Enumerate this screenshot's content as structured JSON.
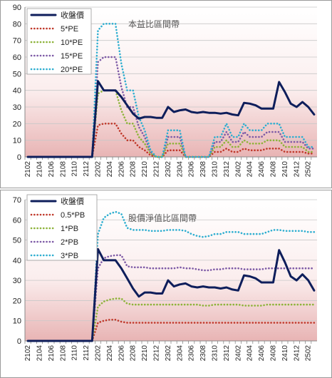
{
  "chart_data": [
    {
      "type": "line",
      "title": "本益比區間帶",
      "ylim": [
        0,
        90
      ],
      "yticks": [
        0,
        10,
        20,
        30,
        40,
        50,
        60,
        70,
        80,
        90
      ],
      "xticks": [
        "2102",
        "2104",
        "2106",
        "2108",
        "2110",
        "2112",
        "2202",
        "2204",
        "2206",
        "2208",
        "2210",
        "2212",
        "2302",
        "2304",
        "2306",
        "2308",
        "2310",
        "2312",
        "2402",
        "2404",
        "2406",
        "2408",
        "2410",
        "2412",
        "2502"
      ],
      "grid": true,
      "legend_position": "top-left",
      "categories": [
        "2102",
        "2103",
        "2104",
        "2105",
        "2106",
        "2107",
        "2108",
        "2109",
        "2110",
        "2111",
        "2112",
        "2201",
        "2202",
        "2203",
        "2204",
        "2205",
        "2206",
        "2207",
        "2208",
        "2209",
        "2210",
        "2211",
        "2212",
        "2301",
        "2302",
        "2303",
        "2304",
        "2305",
        "2306",
        "2307",
        "2308",
        "2309",
        "2310",
        "2311",
        "2312",
        "2401",
        "2402",
        "2403",
        "2404",
        "2405",
        "2406",
        "2407",
        "2408",
        "2409",
        "2410",
        "2411",
        "2412",
        "2501",
        "2502",
        "2503"
      ],
      "series": [
        {
          "name": "收盤價",
          "color": "#0e1e5b",
          "style": "solid",
          "values": [
            0,
            0,
            0,
            0,
            0,
            0,
            0,
            0,
            0,
            0,
            0,
            0,
            45.5,
            40,
            40,
            40,
            36,
            31,
            26,
            23,
            24,
            24,
            23.5,
            23.5,
            30,
            27,
            28,
            28.5,
            27,
            26.5,
            27,
            26.5,
            26.5,
            26,
            26.5,
            25.5,
            25,
            32.5,
            32,
            31,
            29,
            29,
            29,
            45,
            39,
            32,
            30,
            33,
            30,
            25.5
          ]
        },
        {
          "name": "5*PE",
          "color": "#c0392b",
          "style": "dotted",
          "values": [
            0,
            0,
            0,
            0,
            0,
            0,
            0,
            0,
            0,
            0,
            0,
            0,
            19,
            20,
            20,
            20,
            14,
            10,
            10,
            6,
            4,
            1,
            0,
            0,
            4,
            4,
            4,
            0,
            0,
            0,
            0,
            0,
            3,
            3,
            5,
            3,
            3,
            5,
            4,
            4,
            4,
            5,
            5,
            5,
            3,
            3,
            3,
            3,
            2,
            2
          ]
        },
        {
          "name": "10*PE",
          "color": "#8db33a",
          "style": "dotted",
          "values": [
            0,
            0,
            0,
            0,
            0,
            0,
            0,
            0,
            0,
            0,
            0,
            0,
            38,
            40,
            40,
            40,
            28,
            20,
            20,
            12,
            8,
            2,
            0,
            0,
            8,
            8,
            8,
            0,
            0,
            0,
            0,
            0,
            6,
            6,
            10,
            6,
            6,
            10,
            8,
            8,
            8,
            10,
            10,
            10,
            6,
            6,
            6,
            6,
            3,
            3
          ]
        },
        {
          "name": "15*PE",
          "color": "#7d5aa6",
          "style": "dotted",
          "values": [
            0,
            0,
            0,
            0,
            0,
            0,
            0,
            0,
            0,
            0,
            0,
            0,
            57,
            60,
            60,
            60,
            42,
            30,
            30,
            18,
            12,
            3,
            0,
            0,
            12,
            12,
            12,
            0,
            0,
            0,
            0,
            0,
            9,
            9,
            15,
            9,
            9,
            15,
            12,
            12,
            12,
            15,
            15,
            15,
            9,
            9,
            9,
            9,
            5,
            5
          ]
        },
        {
          "name": "20*PE",
          "color": "#2eaed0",
          "style": "dotted",
          "values": [
            0,
            0,
            0,
            0,
            0,
            0,
            0,
            0,
            0,
            0,
            0,
            0,
            76,
            80,
            80,
            80,
            56,
            40,
            40,
            24,
            16,
            4,
            0,
            0,
            16,
            16,
            16,
            0,
            0,
            0,
            0,
            0,
            12,
            12,
            20,
            12,
            12,
            20,
            16,
            16,
            16,
            20,
            20,
            20,
            12,
            12,
            12,
            12,
            6,
            6
          ]
        }
      ]
    },
    {
      "type": "line",
      "title": "股價淨值比區間帶",
      "ylim": [
        0,
        70
      ],
      "yticks": [
        0,
        10,
        20,
        30,
        40,
        50,
        60,
        70
      ],
      "xticks": [
        "2102",
        "2104",
        "2106",
        "2108",
        "2110",
        "2112",
        "2202",
        "2204",
        "2206",
        "2208",
        "2210",
        "2212",
        "2302",
        "2304",
        "2306",
        "2308",
        "2310",
        "2312",
        "2402",
        "2404",
        "2406",
        "2408",
        "2410",
        "2412",
        "2502"
      ],
      "grid": true,
      "legend_position": "top-left",
      "categories": [
        "2102",
        "2103",
        "2104",
        "2105",
        "2106",
        "2107",
        "2108",
        "2109",
        "2110",
        "2111",
        "2112",
        "2201",
        "2202",
        "2203",
        "2204",
        "2205",
        "2206",
        "2207",
        "2208",
        "2209",
        "2210",
        "2211",
        "2212",
        "2301",
        "2302",
        "2303",
        "2304",
        "2305",
        "2306",
        "2307",
        "2308",
        "2309",
        "2310",
        "2311",
        "2312",
        "2401",
        "2402",
        "2403",
        "2404",
        "2405",
        "2406",
        "2407",
        "2408",
        "2409",
        "2410",
        "2411",
        "2412",
        "2501",
        "2502",
        "2503"
      ],
      "series": [
        {
          "name": "收盤價",
          "color": "#0e1e5b",
          "style": "solid",
          "values": [
            0,
            0,
            0,
            0,
            0,
            0,
            0,
            0,
            0,
            0,
            0,
            0,
            45.5,
            40,
            40,
            40,
            36,
            31,
            26,
            22,
            24,
            24,
            23.5,
            23.5,
            30,
            27,
            28,
            28.5,
            27,
            26.5,
            27,
            26.5,
            26.5,
            26,
            26.5,
            25.5,
            25,
            32.5,
            32,
            31,
            29,
            29,
            29,
            45,
            39,
            32,
            30,
            33,
            30,
            25
          ]
        },
        {
          "name": "0.5*PB",
          "color": "#c0392b",
          "style": "dotted",
          "values": [
            0,
            0,
            0,
            0,
            0,
            0,
            0,
            0,
            0,
            0,
            0,
            0,
            9,
            10,
            10.5,
            10.5,
            9.5,
            9,
            9,
            9,
            9,
            9,
            9,
            9,
            9,
            9,
            9,
            9,
            9,
            9,
            9,
            9,
            9,
            9,
            9,
            9,
            9,
            9,
            9,
            9,
            9,
            9,
            9,
            9,
            9,
            9,
            9,
            9,
            9,
            9
          ]
        },
        {
          "name": "1*PB",
          "color": "#8db33a",
          "style": "dotted",
          "values": [
            0,
            0,
            0,
            0,
            0,
            0,
            0,
            0,
            0,
            0,
            0,
            0,
            17,
            19.5,
            20.5,
            21,
            21,
            18.5,
            18,
            18,
            18,
            18,
            18,
            18,
            18,
            18,
            18,
            18,
            18,
            18,
            17.5,
            17.5,
            18,
            18,
            18,
            18,
            18,
            17.5,
            17.5,
            17.5,
            17.5,
            18,
            18,
            18,
            18,
            18,
            18,
            18,
            18,
            18
          ]
        },
        {
          "name": "2*PB",
          "color": "#7d5aa6",
          "style": "dotted",
          "values": [
            0,
            0,
            0,
            0,
            0,
            0,
            0,
            0,
            0,
            0,
            0,
            0,
            36,
            41,
            42,
            42.5,
            42.5,
            37,
            36.5,
            36.5,
            36.5,
            36,
            36,
            36,
            36,
            36,
            36.5,
            36,
            36,
            35.5,
            35,
            35,
            35.5,
            35.5,
            36,
            36,
            36,
            35.5,
            35.5,
            35.5,
            35.5,
            36,
            36,
            36,
            36,
            36,
            36,
            36,
            36,
            36
          ]
        },
        {
          "name": "3*PB",
          "color": "#2eaed0",
          "style": "dotted",
          "values": [
            0,
            0,
            0,
            0,
            0,
            0,
            0,
            0,
            0,
            0,
            0,
            0,
            53,
            61,
            63,
            64,
            63,
            56,
            55,
            55,
            55,
            54.5,
            54.5,
            54.5,
            55,
            55,
            55,
            54.5,
            53,
            52,
            51.5,
            52,
            53,
            53,
            54,
            54,
            54,
            53,
            53,
            53,
            53,
            54,
            55,
            55,
            54.5,
            54.5,
            54.5,
            54.5,
            54,
            54
          ]
        }
      ]
    }
  ]
}
